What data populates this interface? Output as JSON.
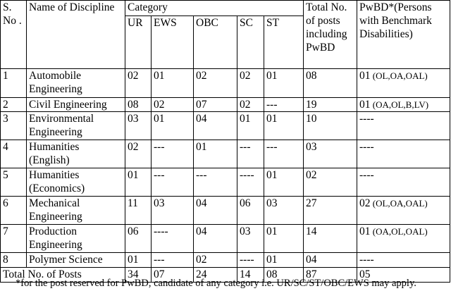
{
  "headers": {
    "sno": "S. No .",
    "discipline": "Name of Discipline",
    "category": "Category",
    "categories": [
      "UR",
      "EWS",
      "OBC",
      "SC",
      "ST"
    ],
    "total": "Total No. of posts including PwBD",
    "pwbd": "PwBD*(Persons with Benchmark Disabilities)"
  },
  "rows": [
    {
      "sno": "1",
      "discipline": [
        "Automobile",
        "Engineering"
      ],
      "ur": "02",
      "ews": "01",
      "obc": "02",
      "sc": "02",
      "st": "01",
      "total": "08",
      "pwbd_count": "01",
      "pwbd_cats": " (OL,OA,OAL)"
    },
    {
      "sno": "2",
      "discipline": [
        "Civil Engineering"
      ],
      "ur": "08",
      "ews": "02",
      "obc": "07",
      "sc": "02",
      "st": "---",
      "total": "19",
      "pwbd_count": "01",
      "pwbd_cats": " (OA,OL,B,LV)"
    },
    {
      "sno": "3",
      "discipline": [
        "Environmental",
        "Engineering"
      ],
      "ur": "03",
      "ews": "01",
      "obc": "04",
      "sc": "01",
      "st": "01",
      "total": "10",
      "pwbd_count": "----",
      "pwbd_cats": ""
    },
    {
      "sno": "4",
      "discipline": [
        "Humanities",
        "(English)"
      ],
      "ur": "02",
      "ews": "---",
      "obc": "01",
      "sc": "---",
      "st": "---",
      "total": "03",
      "pwbd_count": "----",
      "pwbd_cats": ""
    },
    {
      "sno": "5",
      "discipline": [
        "Humanities",
        "(Economics)"
      ],
      "ur": "01",
      "ews": "---",
      "obc": "---",
      "sc": "----",
      "st": "01",
      "total": "02",
      "pwbd_count": "----",
      "pwbd_cats": ""
    },
    {
      "sno": "6",
      "discipline": [
        "Mechanical",
        "Engineering"
      ],
      "ur": "11",
      "ews": "03",
      "obc": "04",
      "sc": "06",
      "st": "03",
      "total": "27",
      "pwbd_count": "02",
      "pwbd_cats": " (OL,OA,OAL)"
    },
    {
      "sno": "7",
      "discipline": [
        "Production",
        "Engineering"
      ],
      "ur": "06",
      "ews": "----",
      "obc": "04",
      "sc": "03",
      "st": "01",
      "total": "14",
      "pwbd_count": "01",
      "pwbd_cats": " (OA,OL,OAL)"
    },
    {
      "sno": "8",
      "discipline": [
        "Polymer Science"
      ],
      "ur": "01",
      "ews": "---",
      "obc": "02",
      "sc": "----",
      "st": "01",
      "total": "04",
      "pwbd_count": "----",
      "pwbd_cats": ""
    }
  ],
  "totals": {
    "label": "Total No. of Posts",
    "ur": "34",
    "ews": "07",
    "obc": "24",
    "sc": "14",
    "st": "08",
    "total": "87",
    "pwbd": "05"
  },
  "footnote": "*for the post reserved for PwBD, candidate of any category i.e. UR/SC/ST/OBC/EWS may apply."
}
